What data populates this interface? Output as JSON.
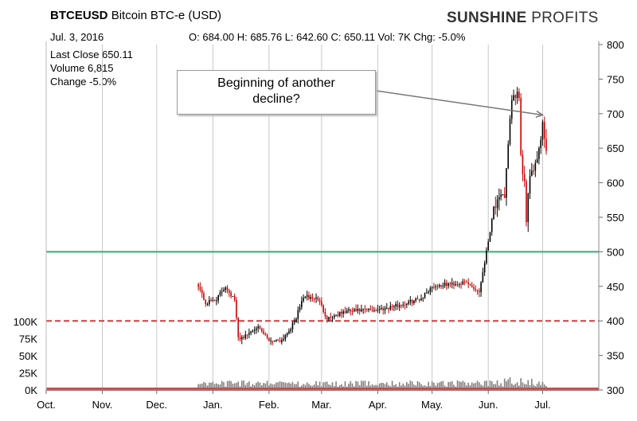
{
  "header": {
    "symbol": "BTCEUSD",
    "name": "Bitcoin BTC-e (USD)",
    "brand_bold": "SUNSHINE",
    "brand_light": "PROFITS",
    "date": "Jul. 3, 2016",
    "ohlc": "O: 684.00 H: 685.76 L: 642.60 C: 650.11 Vol: 7K Chg: -5.0%"
  },
  "stats": {
    "last_close": "Last Close 650.11",
    "volume": "Volume 6,815",
    "change": "Change -5.0%"
  },
  "annotation": {
    "line1": "Beginning of another",
    "line2": "decline?"
  },
  "colors": {
    "up": "#000000",
    "down": "#cc0000",
    "support": "#2db36b",
    "dashed": "#d23c3c",
    "grid": "#c8c8c8",
    "volume": "#808080",
    "base": "#c05050"
  },
  "chart_data": {
    "type": "candlestick",
    "x_ticks": [
      "Oct.",
      "Nov.",
      "Dec.",
      "Jan.",
      "Feb.",
      "Mar.",
      "Apr.",
      "May.",
      "Jun.",
      "Jul."
    ],
    "y_ticks": [
      300,
      350,
      400,
      450,
      500,
      550,
      600,
      650,
      700,
      750,
      800
    ],
    "ylim": [
      300,
      800
    ],
    "volume_ticks": [
      "0K",
      "25K",
      "50K",
      "75K",
      "100K"
    ],
    "horizontal_lines": [
      {
        "value": 500,
        "style": "solid",
        "color": "green"
      },
      {
        "value": 400,
        "style": "dashed",
        "color": "red"
      }
    ],
    "series_keypoints": [
      {
        "date": "2015-12-24",
        "price": 452
      },
      {
        "date": "2015-12-28",
        "price": 425
      },
      {
        "date": "2016-01-03",
        "price": 432
      },
      {
        "date": "2016-01-08",
        "price": 450
      },
      {
        "date": "2016-01-13",
        "price": 430
      },
      {
        "date": "2016-01-15",
        "price": 375
      },
      {
        "date": "2016-01-19",
        "price": 378
      },
      {
        "date": "2016-01-25",
        "price": 392
      },
      {
        "date": "2016-02-01",
        "price": 372
      },
      {
        "date": "2016-02-08",
        "price": 372
      },
      {
        "date": "2016-02-15",
        "price": 398
      },
      {
        "date": "2016-02-20",
        "price": 435
      },
      {
        "date": "2016-02-28",
        "price": 432
      },
      {
        "date": "2016-03-04",
        "price": 404
      },
      {
        "date": "2016-03-15",
        "price": 414
      },
      {
        "date": "2016-03-31",
        "price": 416
      },
      {
        "date": "2016-04-15",
        "price": 424
      },
      {
        "date": "2016-04-25",
        "price": 433
      },
      {
        "date": "2016-05-01",
        "price": 450
      },
      {
        "date": "2016-05-10",
        "price": 453
      },
      {
        "date": "2016-05-20",
        "price": 455
      },
      {
        "date": "2016-05-27",
        "price": 442
      },
      {
        "date": "2016-06-01",
        "price": 515
      },
      {
        "date": "2016-06-04",
        "price": 565
      },
      {
        "date": "2016-06-10",
        "price": 582
      },
      {
        "date": "2016-06-12",
        "price": 660
      },
      {
        "date": "2016-06-14",
        "price": 715
      },
      {
        "date": "2016-06-17",
        "price": 730
      },
      {
        "date": "2016-06-18",
        "price": 720
      },
      {
        "date": "2016-06-19",
        "price": 635
      },
      {
        "date": "2016-06-21",
        "price": 600
      },
      {
        "date": "2016-06-22",
        "price": 540
      },
      {
        "date": "2016-06-24",
        "price": 615
      },
      {
        "date": "2016-06-27",
        "price": 628
      },
      {
        "date": "2016-06-29",
        "price": 650
      },
      {
        "date": "2016-07-01",
        "price": 684
      },
      {
        "date": "2016-07-03",
        "price": 650
      }
    ]
  }
}
